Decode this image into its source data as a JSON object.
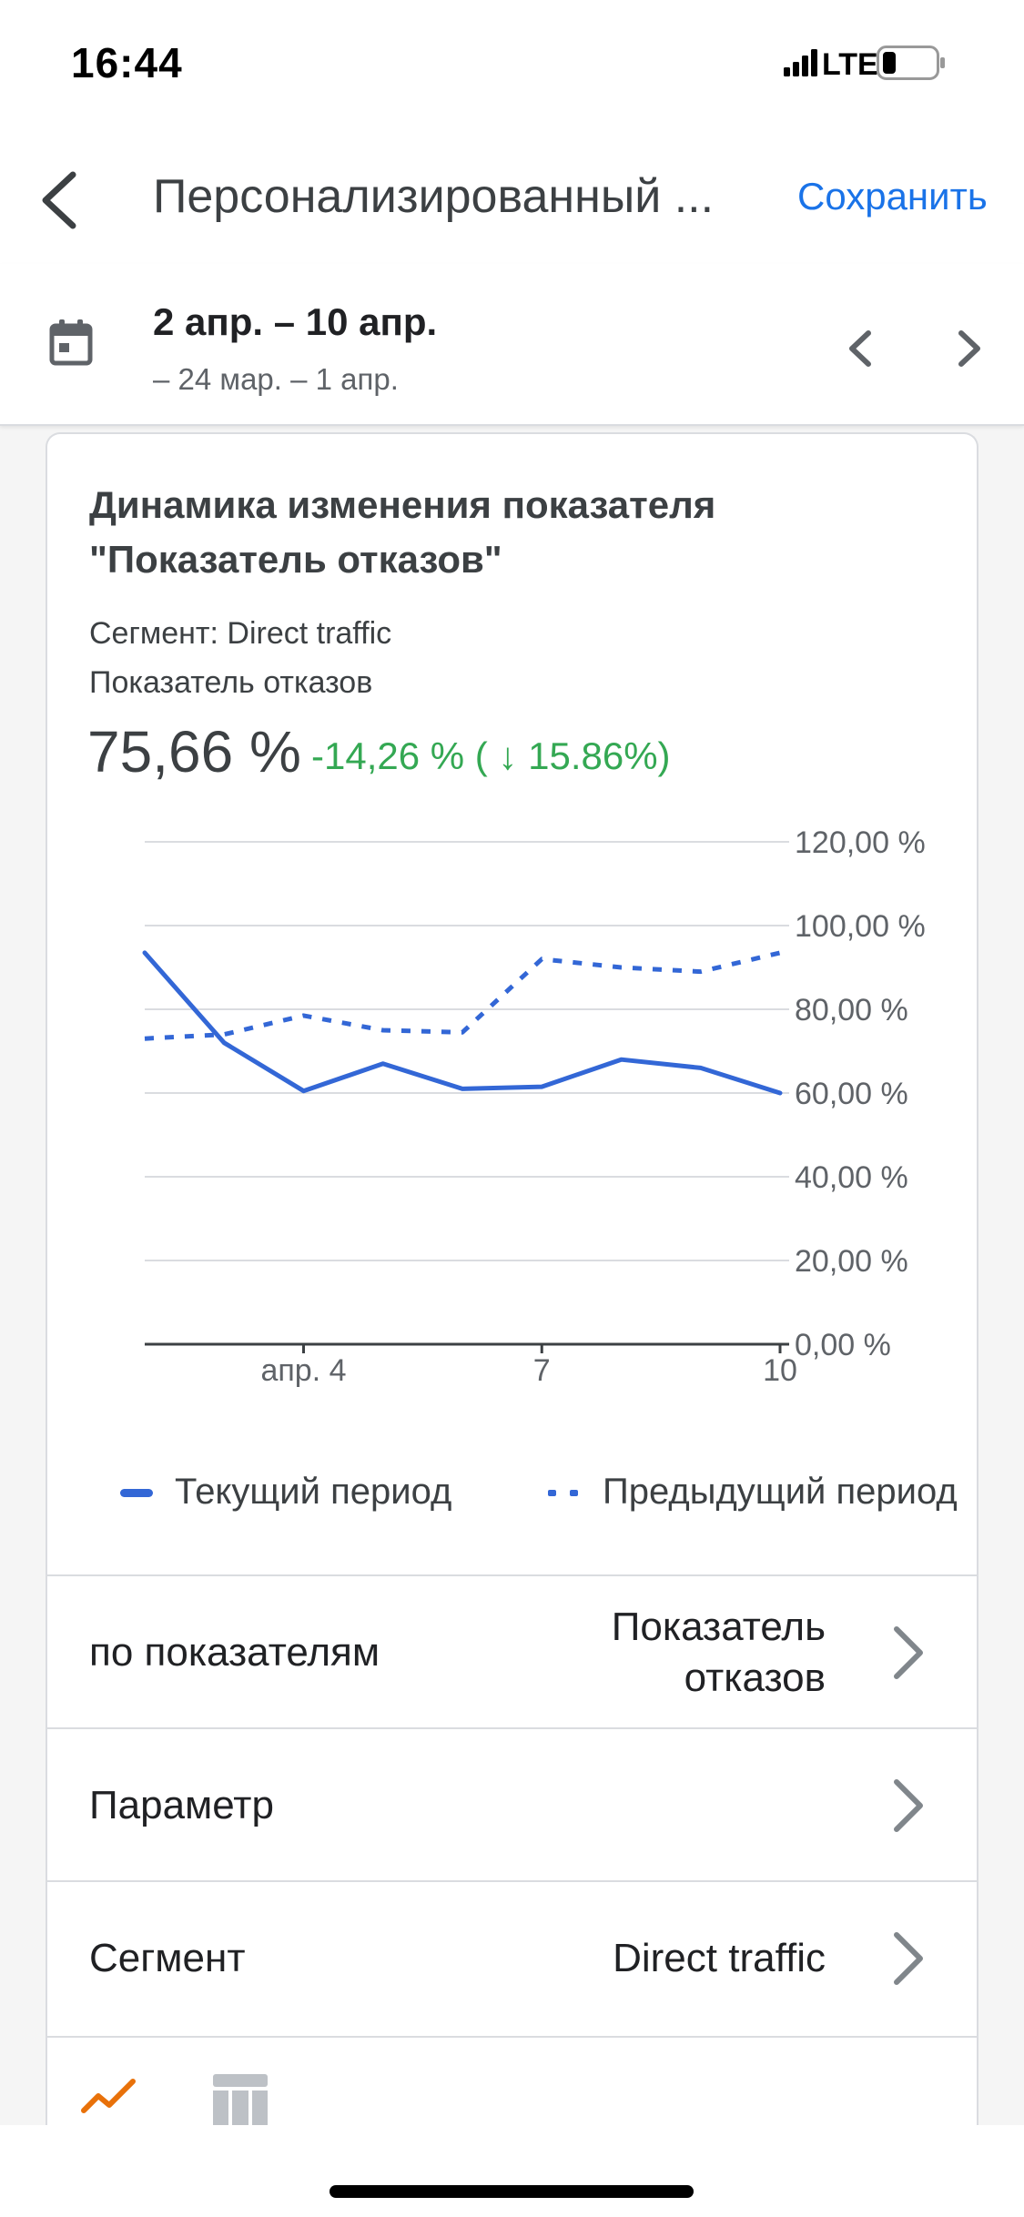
{
  "status_bar": {
    "time": "16:44",
    "network": "LTE"
  },
  "app_bar": {
    "title": "Персонализированный ...",
    "save_label": "Сохранить",
    "back_icon": "chevron-left-icon"
  },
  "date_range": {
    "primary": "2 апр. – 10 апр.",
    "secondary": "– 24 мар. – 1 апр.",
    "calendar_icon": "calendar-icon"
  },
  "card": {
    "title": "Динамика изменения показателя \"Показатель отказов\"",
    "segment_line": "Сегмент: Direct traffic",
    "metric_name": "Показатель отказов",
    "metric_value": "75,66 %",
    "metric_change": "-14,26 % ( ↓ 15.86%)",
    "change_color": "#34a853"
  },
  "chart_data": {
    "type": "line",
    "x": [
      2,
      3,
      4,
      5,
      6,
      7,
      8,
      9,
      10
    ],
    "x_tick_labels": [
      {
        "x": 4,
        "label": "апр. 4"
      },
      {
        "x": 7,
        "label": "7"
      },
      {
        "x": 10,
        "label": "10"
      }
    ],
    "y_tick_labels": [
      "0,00 %",
      "20,00 %",
      "40,00 %",
      "60,00 %",
      "80,00 %",
      "100,00 %",
      "120,00 %"
    ],
    "y_ticks": [
      0,
      20,
      40,
      60,
      80,
      100,
      120
    ],
    "ylim": [
      0,
      120
    ],
    "grid": true,
    "series": [
      {
        "name": "Текущий период",
        "style": "solid",
        "color": "#3367d6",
        "values": [
          93.5,
          72,
          60.5,
          67,
          61,
          61.5,
          68,
          66,
          60
        ]
      },
      {
        "name": "Предыдущий период",
        "style": "dotted",
        "color": "#3367d6",
        "values": [
          73,
          74,
          78.5,
          75,
          74.5,
          92,
          90,
          89,
          93.5
        ]
      }
    ]
  },
  "rows": [
    {
      "label": "по показателям",
      "value": "Показатель отказов"
    },
    {
      "label": "Параметр",
      "value": ""
    },
    {
      "label": "Сегмент",
      "value": "Direct traffic"
    }
  ],
  "tabs": {
    "trend_icon": "trend-line-icon",
    "trend_color": "#e8710a",
    "table_icon": "table-icon"
  }
}
